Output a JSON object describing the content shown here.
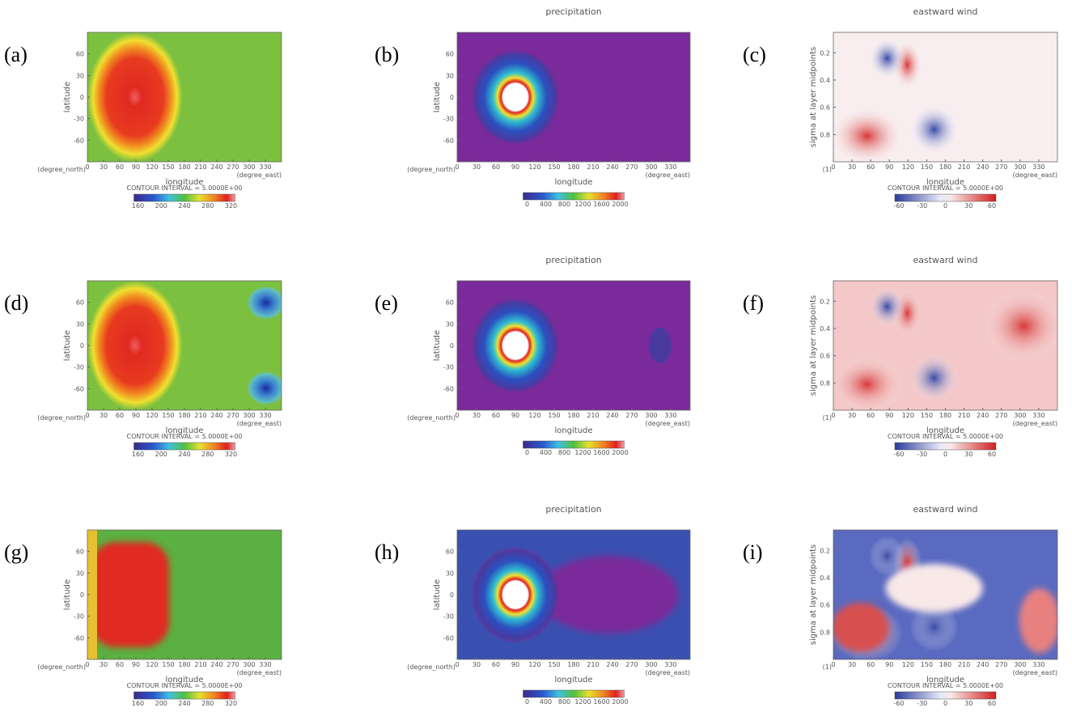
{
  "panel_types": {
    "temperature": {
      "ylabel": "latitude",
      "yticks": [
        "60",
        "30",
        "0",
        "-30",
        "-60"
      ],
      "xticks": [
        "0",
        "30",
        "60",
        "90",
        "120",
        "150",
        "180",
        "210",
        "240",
        "270",
        "300",
        "330"
      ],
      "xlabel": "longitude",
      "corner_left": "(degree_north)",
      "corner_right": "(degree_east)",
      "contour_interval": "CONTOUR INTERVAL = 5.0000E+00",
      "colorbar_ticks": [
        "160",
        "200",
        "240",
        "280",
        "320"
      ]
    },
    "precipitation": {
      "title": "precipitation",
      "ylabel": "latitude",
      "yticks": [
        "60",
        "30",
        "0",
        "-30",
        "-60"
      ],
      "xticks": [
        "0",
        "30",
        "60",
        "90",
        "120",
        "150",
        "180",
        "210",
        "240",
        "270",
        "300",
        "330"
      ],
      "xlabel": "longitude",
      "corner_left": "(degree_north)",
      "corner_right": "(degree_east)",
      "colorbar_ticks": [
        "0",
        "400",
        "800",
        "1200",
        "1600",
        "2000"
      ]
    },
    "wind": {
      "title": "eastward wind",
      "ylabel": "sigma at layer midpoints",
      "yticks": [
        "0.2",
        "0.4",
        "0.6",
        "0.8"
      ],
      "xticks": [
        "0",
        "30",
        "60",
        "90",
        "120",
        "150",
        "180",
        "210",
        "240",
        "270",
        "300",
        "330"
      ],
      "xlabel": "longitude",
      "corner_left": "(1)",
      "corner_right": "(degree_east)",
      "contour_interval": "CONTOUR INTERVAL = 5.0000E+00",
      "colorbar_ticks": [
        "-60",
        "-30",
        "0",
        "30",
        "60"
      ]
    }
  },
  "panels": [
    {
      "label": "(a)",
      "kind": "temperature"
    },
    {
      "label": "(b)",
      "kind": "precipitation"
    },
    {
      "label": "(c)",
      "kind": "wind"
    },
    {
      "label": "(d)",
      "kind": "temperature"
    },
    {
      "label": "(e)",
      "kind": "precipitation"
    },
    {
      "label": "(f)",
      "kind": "wind"
    },
    {
      "label": "(g)",
      "kind": "temperature"
    },
    {
      "label": "(h)",
      "kind": "precipitation"
    },
    {
      "label": "(i)",
      "kind": "wind"
    }
  ]
}
